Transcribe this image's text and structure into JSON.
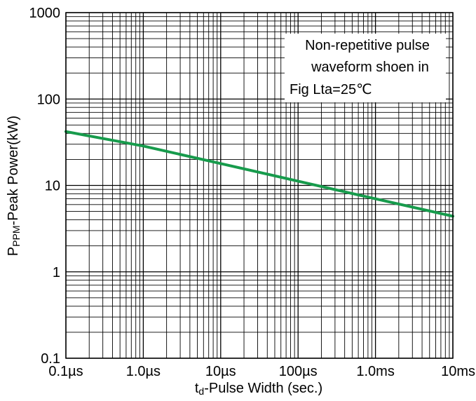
{
  "chart_data": {
    "type": "line",
    "x_scale": "log",
    "y_scale": "log",
    "xlim": [
      "0.1µs",
      "10ms"
    ],
    "ylim": [
      0.1,
      1000
    ],
    "x_ticks": [
      {
        "value_s": 1e-07,
        "label": "0.1µs"
      },
      {
        "value_s": 1e-06,
        "label": "1.0µs"
      },
      {
        "value_s": 1e-05,
        "label": "10µs"
      },
      {
        "value_s": 0.0001,
        "label": "100µs"
      },
      {
        "value_s": 0.001,
        "label": "1.0ms"
      },
      {
        "value_s": 0.01,
        "label": "10ms"
      }
    ],
    "y_ticks": [
      {
        "value": 0.1,
        "label": "0.1"
      },
      {
        "value": 1,
        "label": "1"
      },
      {
        "value": 10,
        "label": "10"
      },
      {
        "value": 100,
        "label": "100"
      },
      {
        "value": 1000,
        "label": "1000"
      }
    ],
    "xlabel_parts": {
      "main": "t",
      "sub": "d",
      "rest": "-Pulse Width (sec.)"
    },
    "ylabel_parts": {
      "main": "P",
      "sub": "PPM",
      "rest": "-Peak Power(kW)"
    },
    "grid": true,
    "series": [
      {
        "x_s": [
          1e-07,
          1e-06,
          1e-05,
          0.0001,
          0.001,
          0.01
        ],
        "y": [
          42,
          28.6,
          17.9,
          11.2,
          7.0,
          4.4
        ],
        "color": "#179b4c"
      }
    ],
    "annotation_lines": [
      "Non-repetitive pulse",
      "waveform shoen in",
      "Fig Lta=25℃"
    ]
  }
}
